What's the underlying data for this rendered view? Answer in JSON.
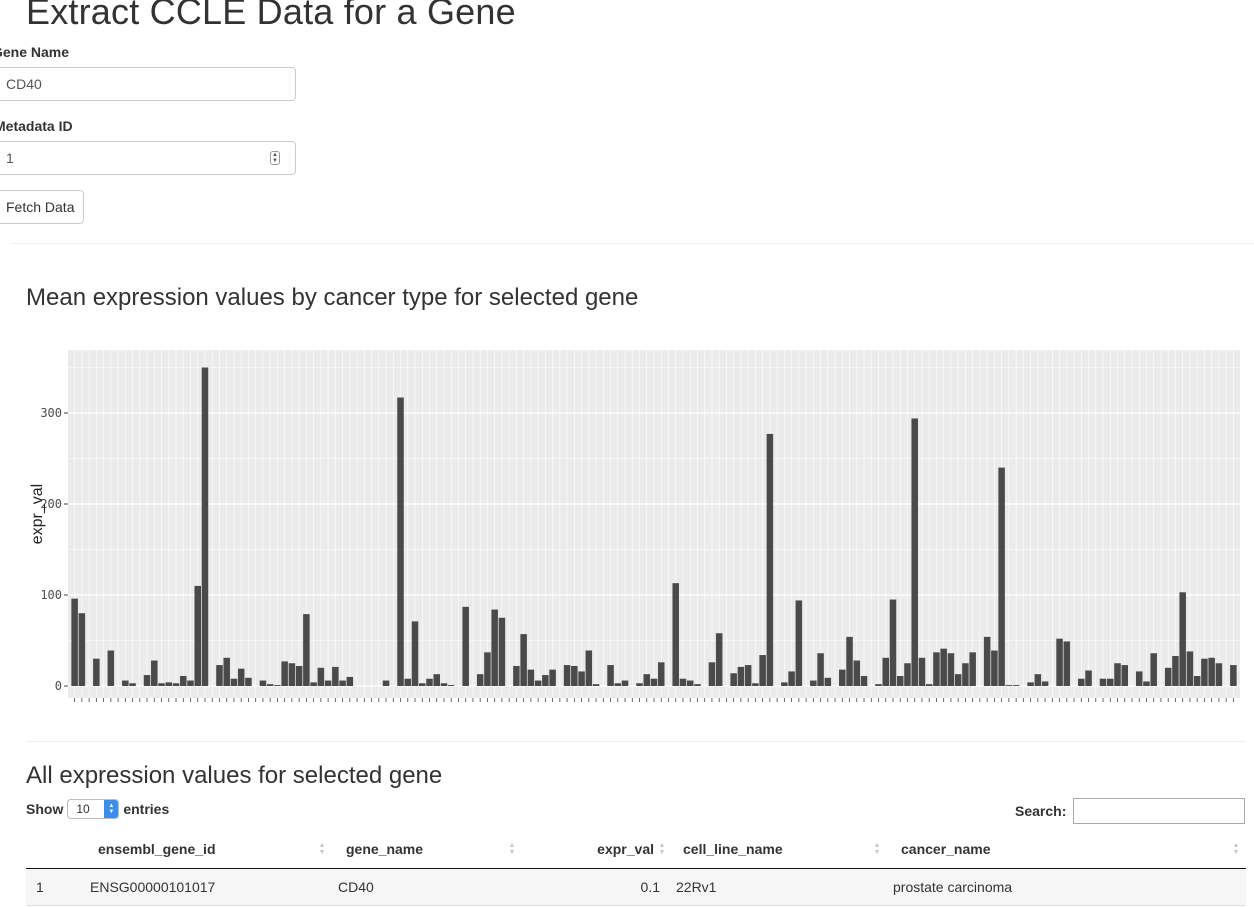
{
  "page": {
    "title": "Extract CCLE Data for a Gene"
  },
  "form": {
    "gene_label": "Gene Name",
    "gene_value": "CD40",
    "metadata_label": "Metadata ID",
    "metadata_value": "1",
    "fetch_label": "Fetch Data"
  },
  "chart_section": {
    "title": "Mean expression values by cancer type for selected gene"
  },
  "chart_data": {
    "type": "bar",
    "ylabel": "expr_val",
    "xlabel": "",
    "ylim": [
      0,
      370
    ],
    "yticks": [
      0,
      100,
      200,
      300
    ],
    "grid": true,
    "bar_color": "#4a4a4a",
    "panel_color": "#ebebeb",
    "values": [
      96,
      80,
      0,
      30,
      0,
      39,
      0,
      6,
      3,
      0,
      12,
      28,
      3,
      4,
      3,
      11,
      6,
      110,
      350,
      0,
      23,
      31,
      8,
      19,
      9,
      0,
      6,
      2,
      1,
      27,
      25,
      22,
      79,
      4,
      20,
      6,
      21,
      6,
      10,
      0,
      0,
      0,
      0,
      6,
      0,
      317,
      8,
      71,
      3,
      8,
      13,
      3,
      1,
      0,
      87,
      0,
      13,
      37,
      84,
      75,
      0,
      22,
      57,
      18,
      6,
      12,
      18,
      0,
      23,
      22,
      16,
      39,
      2,
      0,
      23,
      3,
      6,
      0,
      3,
      13,
      8,
      26,
      0,
      113,
      8,
      6,
      2,
      0,
      26,
      58,
      0,
      14,
      21,
      23,
      3,
      34,
      277,
      0,
      4,
      16,
      94,
      0,
      6,
      36,
      9,
      0,
      18,
      54,
      28,
      11,
      0,
      2,
      31,
      95,
      11,
      25,
      294,
      31,
      2,
      37,
      41,
      36,
      13,
      25,
      37,
      0,
      54,
      39,
      240,
      1,
      1,
      0,
      4,
      13,
      5,
      0,
      52,
      49,
      0,
      8,
      17,
      0,
      8,
      8,
      25,
      23,
      0,
      16,
      5,
      36,
      0,
      20,
      33,
      103,
      38,
      11,
      30,
      31,
      25,
      0,
      23
    ]
  },
  "table_section": {
    "title": "All expression values for selected gene",
    "show_label": "Show",
    "entries_value": "10",
    "entries_label": "entries",
    "search_label": "Search:",
    "columns": [
      "ensembl_gene_id",
      "gene_name",
      "expr_val",
      "cell_line_name",
      "cancer_name"
    ],
    "rows": [
      {
        "index": "1",
        "ensembl_gene_id": "ENSG00000101017",
        "gene_name": "CD40",
        "expr_val": "0.1",
        "cell_line_name": "22Rv1",
        "cancer_name": "prostate carcinoma"
      }
    ]
  }
}
